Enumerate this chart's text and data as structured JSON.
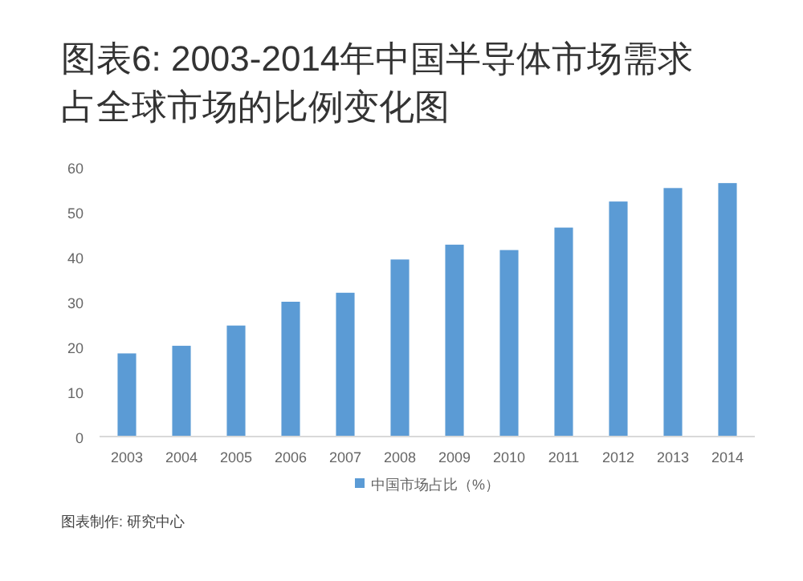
{
  "chart_data": {
    "type": "bar",
    "title": "图表6: 2003-2014年中国半导体市场需求占全球市场的比例变化图",
    "categories": [
      "2003",
      "2004",
      "2005",
      "2006",
      "2007",
      "2008",
      "2009",
      "2010",
      "2011",
      "2012",
      "2013",
      "2014"
    ],
    "series": [
      {
        "name": "中国市场占比（%）",
        "color": "#5b9bd5",
        "values": [
          18.5,
          20.2,
          24.7,
          30,
          32,
          39.4,
          42.7,
          41.5,
          46.5,
          52.3,
          55.3,
          56.4
        ]
      }
    ],
    "ylim": [
      0,
      60
    ],
    "yticks": [
      0,
      10,
      20,
      30,
      40,
      50,
      60
    ],
    "grid": false,
    "legend": "bottom",
    "annotations": [
      "图表制作: 研究中心"
    ]
  }
}
